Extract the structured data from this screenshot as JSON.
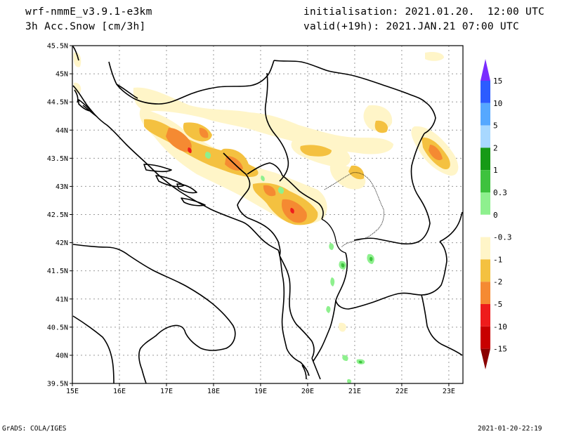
{
  "header": {
    "model": "wrf-nmmE_v3.9.1-e3km",
    "field": "3h Acc.Snow [cm/3h]",
    "init": "initialisation: 2021.01.20.  12:00 UTC",
    "valid": "valid(+19h): 2021.JAN.21 07:00 UTC"
  },
  "map": {
    "x_ticks": [
      "15E",
      "16E",
      "17E",
      "18E",
      "19E",
      "20E",
      "21E",
      "22E",
      "23E"
    ],
    "y_ticks": [
      "45.5N",
      "45N",
      "44.5N",
      "44N",
      "43.5N",
      "43N",
      "42.5N",
      "42N",
      "41.5N",
      "41N",
      "40.5N",
      "40N",
      "39.5N"
    ],
    "lon_range": [
      15,
      23.3
    ],
    "lat_range": [
      39.5,
      45.5
    ]
  },
  "colorbar": {
    "labels": [
      "15",
      "10",
      "5",
      "2",
      "1",
      "0.3",
      "0",
      "-0.3",
      "-1",
      "-2",
      "-5",
      "-10",
      "-15"
    ],
    "colors": [
      "#7a2cff",
      "#2c5cff",
      "#56a8ff",
      "#a8d8ff",
      "#169a16",
      "#3ec23e",
      "#8ef08e",
      "#ffffff",
      "#fff5c8",
      "#f4c140",
      "#f58a32",
      "#ee1c1c",
      "#c80000",
      "#a00000",
      "#8a0000"
    ]
  },
  "footer": {
    "left": "GrADS: COLA/IGES",
    "right": "2021-01-20-22:19"
  }
}
